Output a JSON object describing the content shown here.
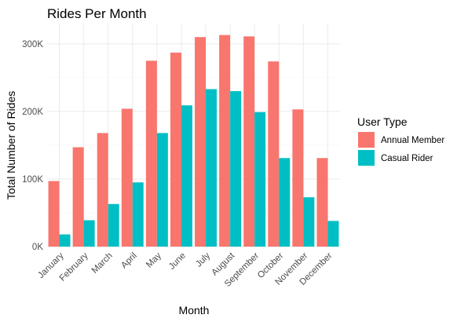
{
  "chart_data": {
    "type": "bar",
    "title": "Rides Per Month",
    "xlabel": "Month",
    "ylabel": "Total Number of Rides",
    "categories": [
      "January",
      "February",
      "March",
      "April",
      "May",
      "June",
      "July",
      "August",
      "September",
      "October",
      "November",
      "December"
    ],
    "series": [
      {
        "name": "Annual Member",
        "color": "#F8766D",
        "values": [
          97000,
          147000,
          168000,
          204000,
          275000,
          287000,
          310000,
          313000,
          311000,
          274000,
          203000,
          131000
        ]
      },
      {
        "name": "Casual Rider",
        "color": "#00BFC4",
        "values": [
          18000,
          39000,
          63000,
          95000,
          168000,
          209000,
          233000,
          230000,
          199000,
          131000,
          73000,
          38000
        ]
      }
    ],
    "ylim": [
      0,
      330000
    ],
    "yticks": [
      {
        "value": 0,
        "label": "0K"
      },
      {
        "value": 100000,
        "label": "100K"
      },
      {
        "value": 200000,
        "label": "200K"
      },
      {
        "value": 300000,
        "label": "300K"
      }
    ],
    "legend": {
      "title": "User Type",
      "position": "right"
    },
    "grid": true
  }
}
